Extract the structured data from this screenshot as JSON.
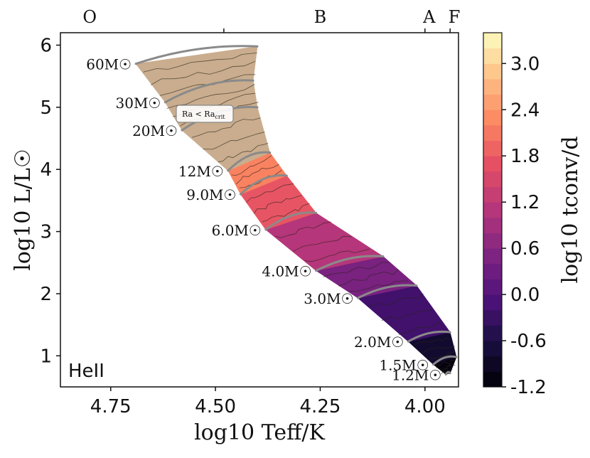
{
  "chart_data": {
    "type": "heatmap",
    "panel_label": "HeII",
    "xlabel": "log10 Teff/K",
    "ylabel": "log10 L/L☉",
    "xlim": [
      4.87,
      3.92
    ],
    "ylim": [
      0.5,
      6.2
    ],
    "xticks": [
      4.75,
      4.5,
      4.25,
      4.0
    ],
    "xtick_labels": [
      "4.75",
      "4.50",
      "4.25",
      "4.00"
    ],
    "yticks": [
      1,
      2,
      3,
      4,
      5,
      6
    ],
    "ytick_labels": [
      "1",
      "2",
      "3",
      "4",
      "5",
      "6"
    ],
    "spectral_types": [
      {
        "label": "O",
        "x": 4.8
      },
      {
        "label": "B",
        "x": 4.25
      },
      {
        "label": "A",
        "x": 3.99
      },
      {
        "label": "F",
        "x": 3.93
      }
    ],
    "spectral_boundaries": [
      4.48,
      4.0,
      3.94
    ],
    "colorbar": {
      "label": "log10 tconv/d",
      "range": [
        -1.2,
        3.4
      ],
      "ticks": [
        -1.2,
        -0.6,
        0.0,
        0.6,
        1.2,
        1.8,
        2.4,
        3.0
      ],
      "tick_labels": [
        "-1.2",
        "-0.6",
        "0.0",
        "0.6",
        "1.2",
        "1.8",
        "2.4",
        "3.0"
      ]
    },
    "tracks": [
      {
        "label": "60M☉",
        "m": 60,
        "zams": [
          4.69,
          5.7
        ],
        "tams": [
          4.4,
          5.98
        ],
        "value": 3.3
      },
      {
        "label": "30M☉",
        "m": 30,
        "zams": [
          4.62,
          5.08
        ],
        "tams": [
          4.41,
          5.43
        ],
        "value": 3.2
      },
      {
        "label": "20M☉",
        "m": 20,
        "zams": [
          4.58,
          4.63
        ],
        "tams": [
          4.4,
          5.0
        ],
        "value": 2.6
      },
      {
        "label": "12M☉",
        "m": 12,
        "zams": [
          4.47,
          3.98
        ],
        "tams": [
          4.37,
          4.27
        ],
        "value": 2.4
      },
      {
        "label": "9.0M☉",
        "m": 9,
        "zams": [
          4.44,
          3.6
        ],
        "tams": [
          4.33,
          3.9
        ],
        "value": 2.0
      },
      {
        "label": "6.0M☉",
        "m": 6,
        "zams": [
          4.38,
          3.03
        ],
        "tams": [
          4.26,
          3.3
        ],
        "value": 1.5
      },
      {
        "label": "4.0M☉",
        "m": 4,
        "zams": [
          4.26,
          2.37
        ],
        "tams": [
          4.1,
          2.6
        ],
        "value": 0.7
      },
      {
        "label": "3.0M☉",
        "m": 3,
        "zams": [
          4.16,
          1.93
        ],
        "tams": [
          4.02,
          2.13
        ],
        "value": 0.2
      },
      {
        "label": "2.0M☉",
        "m": 2,
        "zams": [
          4.04,
          1.23
        ],
        "tams": [
          3.94,
          1.38
        ],
        "value": -0.6
      },
      {
        "label": "1.5M☉",
        "m": 1.5,
        "zams": [
          3.98,
          0.86
        ],
        "tams": [
          3.925,
          0.98
        ],
        "value": -1.0
      },
      {
        "label": "1.2M☉",
        "m": 1.2,
        "zams": [
          3.95,
          0.7
        ],
        "tams": [
          3.94,
          0.72
        ],
        "value": -1.2
      }
    ],
    "annotation": {
      "text": "Ra < Ra",
      "subscript": "crit",
      "x": 4.42,
      "y": 4.88
    }
  }
}
